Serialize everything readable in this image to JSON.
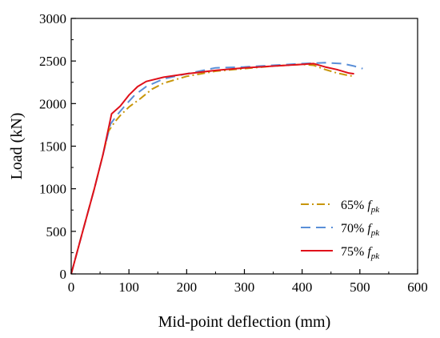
{
  "chart_data": {
    "type": "line",
    "title": "",
    "xlabel": "Mid-point deflection (mm)",
    "ylabel": "Load (kN)",
    "xlim": [
      0,
      600
    ],
    "ylim": [
      0,
      3000
    ],
    "xticks": [
      "0",
      "100",
      "200",
      "300",
      "400",
      "500",
      "600"
    ],
    "yticks": [
      "0",
      "500",
      "1000",
      "1500",
      "2000",
      "2500",
      "3000"
    ],
    "grid": false,
    "legend_position": "bottom-right",
    "series": [
      {
        "name": "65% fpk",
        "legend_main": "65%",
        "legend_f": "f",
        "legend_sub": "pk",
        "color": "#C8960A",
        "style": "dash-dot",
        "x": [
          0,
          20,
          40,
          55,
          65,
          75,
          85,
          100,
          120,
          140,
          160,
          200,
          250,
          300,
          350,
          400,
          420,
          440,
          460,
          480,
          490
        ],
        "y": [
          0,
          500,
          1000,
          1400,
          1680,
          1780,
          1860,
          1960,
          2060,
          2170,
          2240,
          2320,
          2380,
          2410,
          2440,
          2460,
          2450,
          2400,
          2360,
          2330,
          2320
        ]
      },
      {
        "name": "70% fpk",
        "legend_main": "70%",
        "legend_f": "f",
        "legend_sub": "pk",
        "color": "#5A8FD8",
        "style": "dashed",
        "x": [
          0,
          20,
          40,
          55,
          68,
          80,
          95,
          110,
          130,
          160,
          200,
          250,
          300,
          350,
          400,
          440,
          470,
          490,
          505
        ],
        "y": [
          0,
          500,
          1000,
          1400,
          1760,
          1870,
          1990,
          2100,
          2200,
          2290,
          2350,
          2420,
          2430,
          2450,
          2470,
          2480,
          2470,
          2440,
          2410
        ]
      },
      {
        "name": "75% fpk",
        "legend_main": "75%",
        "legend_f": "f",
        "legend_sub": "pk",
        "color": "#E0101A",
        "style": "solid",
        "x": [
          0,
          20,
          40,
          55,
          70,
          85,
          100,
          115,
          130,
          160,
          200,
          250,
          300,
          350,
          400,
          420,
          440,
          460,
          480,
          490
        ],
        "y": [
          0,
          500,
          1000,
          1400,
          1880,
          1970,
          2100,
          2200,
          2260,
          2310,
          2350,
          2390,
          2420,
          2440,
          2460,
          2470,
          2430,
          2400,
          2360,
          2350
        ]
      }
    ]
  }
}
